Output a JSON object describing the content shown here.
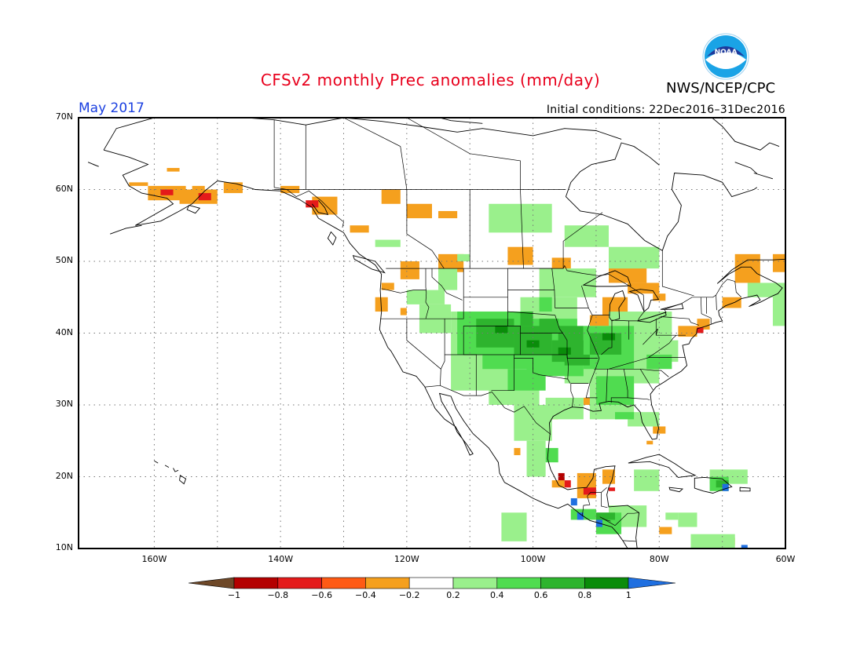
{
  "header": {
    "title": "CFSv2 monthly Prec anomalies (mm/day)",
    "agency": "NWS/NCEP/CPC",
    "logo_text": "NOAA",
    "valid_month": "May 2017",
    "initial_conditions": "Initial conditions: 22Dec2016–31Dec2016"
  },
  "map": {
    "lon_range": [
      -172,
      -60
    ],
    "lat_range": [
      10,
      70
    ],
    "grid": "dotted",
    "lat_labels": [
      "10N",
      "20N",
      "30N",
      "40N",
      "50N",
      "60N",
      "70N"
    ],
    "lon_labels": [
      "160W",
      "140W",
      "120W",
      "100W",
      "80W",
      "60W"
    ]
  },
  "colorbar": {
    "ticks": [
      "−1",
      "−0.8",
      "−0.6",
      "−0.4",
      "−0.2",
      "0.2",
      "0.4",
      "0.6",
      "0.8",
      "1"
    ],
    "colors": [
      "#6e4828",
      "#b40000",
      "#e41a1a",
      "#ff5a14",
      "#f5a01e",
      "#ffffff",
      "#9af08c",
      "#50dc50",
      "#2eb42e",
      "#0a8c0a",
      "#1f6fe0"
    ]
  }
}
